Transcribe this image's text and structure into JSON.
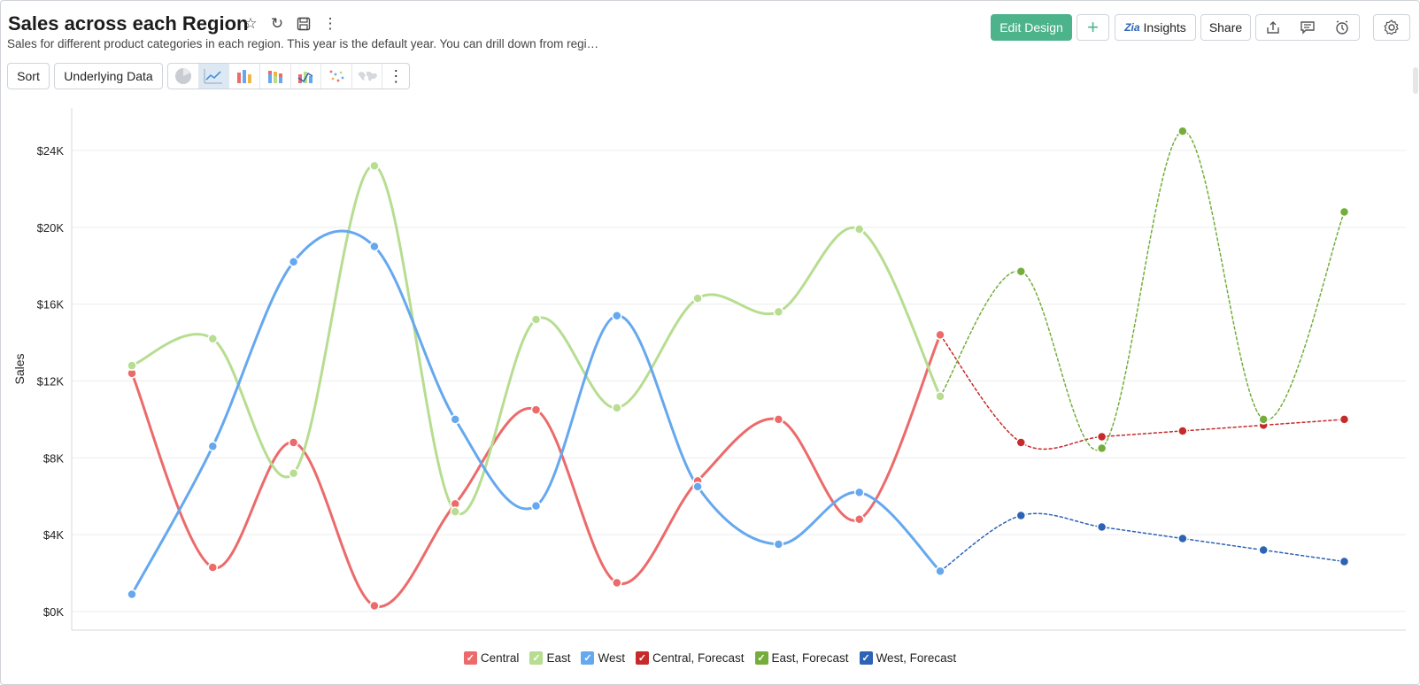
{
  "header": {
    "title": "Sales across each Region",
    "subtitle": "Sales for different product categories in each region. This year is the default year. You can drill down from regi…",
    "title_icons": [
      "star-icon",
      "refresh-icon",
      "save-icon",
      "more-vertical-icon"
    ]
  },
  "toolbar": {
    "edit_design_label": "Edit Design",
    "add_label": "+",
    "insights_label": "Insights",
    "share_label": "Share",
    "sort_label": "Sort",
    "underlying_data_label": "Underlying Data",
    "right_icons": [
      "export-icon",
      "comment-icon",
      "alarm-icon",
      "gear-icon"
    ],
    "chart_type_icons": [
      "pie-chart-icon",
      "line-chart-icon",
      "bar-chart-icon",
      "stacked-bar-icon",
      "combo-chart-icon",
      "scatter-icon",
      "map-icon",
      "more-vertical-icon"
    ]
  },
  "colors": {
    "accent": "#4cb38b",
    "central": "#ec6a6a",
    "east": "#b7dd91",
    "west": "#66a8ef",
    "central_forecast": "#c62a2a",
    "east_forecast": "#74ad3b",
    "west_forecast": "#2c63b5"
  },
  "chart_data": {
    "type": "line",
    "ylabel": "Sales",
    "xlabel": "",
    "ylim": [
      0,
      26000
    ],
    "yticks": [
      "$0K",
      "$4K",
      "$8K",
      "$12K",
      "$16K",
      "$20K",
      "$24K"
    ],
    "ytick_values": [
      0,
      4000,
      8000,
      12000,
      16000,
      20000,
      24000
    ],
    "x_count": 16,
    "grid": true,
    "legend_position": "bottom",
    "series": [
      {
        "name": "Central",
        "color": "#ec6a6a",
        "dashed": false,
        "start": 0,
        "values": [
          12400,
          2300,
          8800,
          300,
          5600,
          10500,
          1500,
          6800,
          10000,
          4800,
          14400
        ]
      },
      {
        "name": "East",
        "color": "#b7dd91",
        "dashed": false,
        "start": 0,
        "values": [
          12800,
          14200,
          7200,
          23200,
          5200,
          15200,
          10600,
          16300,
          15600,
          19900,
          11200
        ]
      },
      {
        "name": "West",
        "color": "#66a8ef",
        "dashed": false,
        "start": 0,
        "values": [
          900,
          8600,
          18200,
          19000,
          10000,
          5500,
          15400,
          6500,
          3500,
          6200,
          2100
        ]
      },
      {
        "name": "Central, Forecast",
        "color": "#c62a2a",
        "dashed": true,
        "start": 10,
        "values": [
          14400,
          8800,
          9100,
          9400,
          9700,
          10000
        ]
      },
      {
        "name": "East, Forecast",
        "color": "#74ad3b",
        "dashed": true,
        "start": 10,
        "values": [
          11200,
          17700,
          8500,
          25000,
          10000,
          20800
        ]
      },
      {
        "name": "West, Forecast",
        "color": "#2c63b5",
        "dashed": true,
        "start": 10,
        "values": [
          2100,
          5000,
          4400,
          3800,
          3200,
          2600
        ]
      }
    ]
  }
}
